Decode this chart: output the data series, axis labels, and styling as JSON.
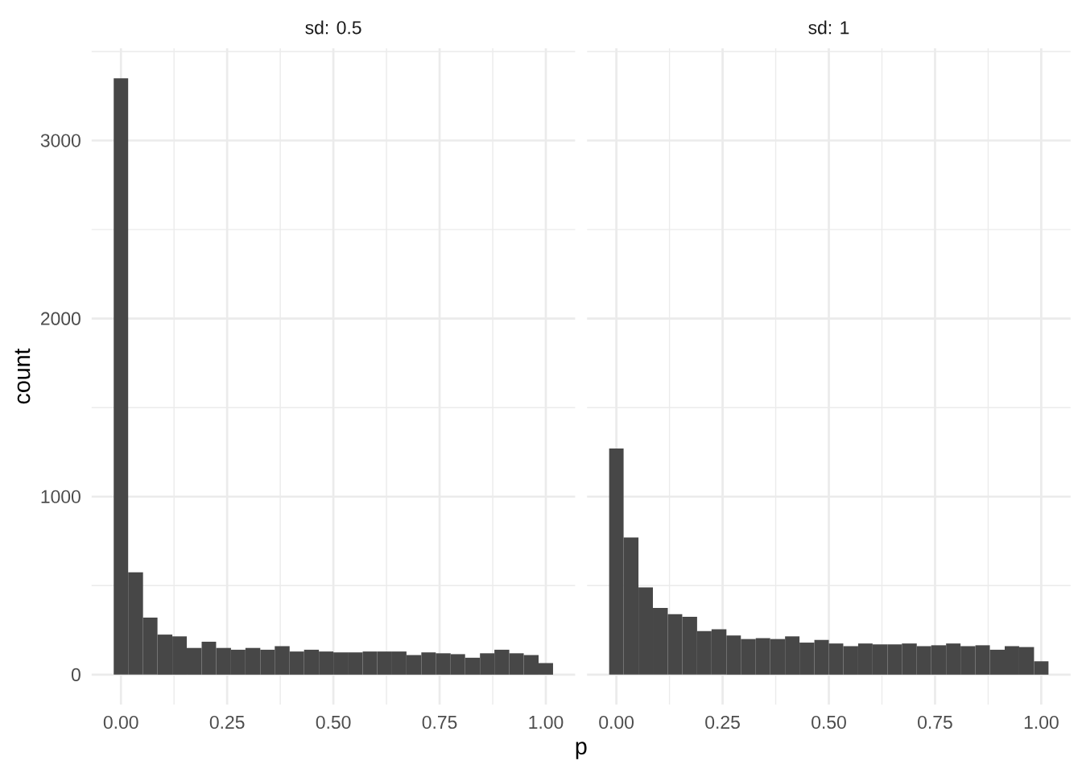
{
  "chart_data": [
    {
      "type": "histogram",
      "title": "sd: 0.5",
      "xlabel": "p",
      "ylabel": "count",
      "bins": [
        -0.017,
        0.017,
        0.052,
        0.086,
        0.121,
        0.155,
        0.19,
        0.224,
        0.259,
        0.293,
        0.328,
        0.362,
        0.397,
        0.431,
        0.466,
        0.5,
        0.534,
        0.569,
        0.603,
        0.638,
        0.672,
        0.707,
        0.741,
        0.776,
        0.81,
        0.845,
        0.879,
        0.914,
        0.948,
        0.983,
        1.017
      ],
      "values": [
        3350,
        575,
        320,
        225,
        215,
        150,
        185,
        150,
        140,
        150,
        140,
        160,
        130,
        140,
        130,
        125,
        125,
        130,
        130,
        130,
        110,
        125,
        120,
        115,
        95,
        120,
        140,
        120,
        110,
        65
      ],
      "color": "#474747",
      "xlim": [
        -0.069,
        1.069
      ],
      "ylim": [
        -168,
        3518
      ],
      "xticks": [
        {
          "value": 0,
          "label": "0.00"
        },
        {
          "value": 0.25,
          "label": "0.25"
        },
        {
          "value": 0.5,
          "label": "0.50"
        },
        {
          "value": 0.75,
          "label": "0.75"
        },
        {
          "value": 1,
          "label": "1.00"
        }
      ],
      "yticks": [
        0,
        1000,
        2000,
        3000
      ],
      "grid": true
    },
    {
      "type": "histogram",
      "title": "sd: 1",
      "bins": [
        -0.017,
        0.017,
        0.052,
        0.086,
        0.121,
        0.155,
        0.19,
        0.224,
        0.259,
        0.293,
        0.328,
        0.362,
        0.397,
        0.431,
        0.466,
        0.5,
        0.534,
        0.569,
        0.603,
        0.638,
        0.672,
        0.707,
        0.741,
        0.776,
        0.81,
        0.845,
        0.879,
        0.914,
        0.948,
        0.983,
        1.017
      ],
      "values": [
        1270,
        770,
        490,
        375,
        340,
        325,
        245,
        255,
        220,
        200,
        205,
        200,
        215,
        180,
        195,
        175,
        160,
        175,
        170,
        170,
        175,
        160,
        165,
        175,
        160,
        165,
        140,
        160,
        155,
        75
      ],
      "color": "#474747",
      "xlim": [
        -0.069,
        1.069
      ],
      "ylim": [
        -168,
        3518
      ],
      "xticks": [
        {
          "value": 0,
          "label": "0.00"
        },
        {
          "value": 0.25,
          "label": "0.25"
        },
        {
          "value": 0.5,
          "label": "0.50"
        },
        {
          "value": 0.75,
          "label": "0.75"
        },
        {
          "value": 1,
          "label": "1.00"
        }
      ],
      "yticks": [
        0,
        1000,
        2000,
        3000
      ],
      "grid": true,
      "tick_labels": "x"
    }
  ]
}
